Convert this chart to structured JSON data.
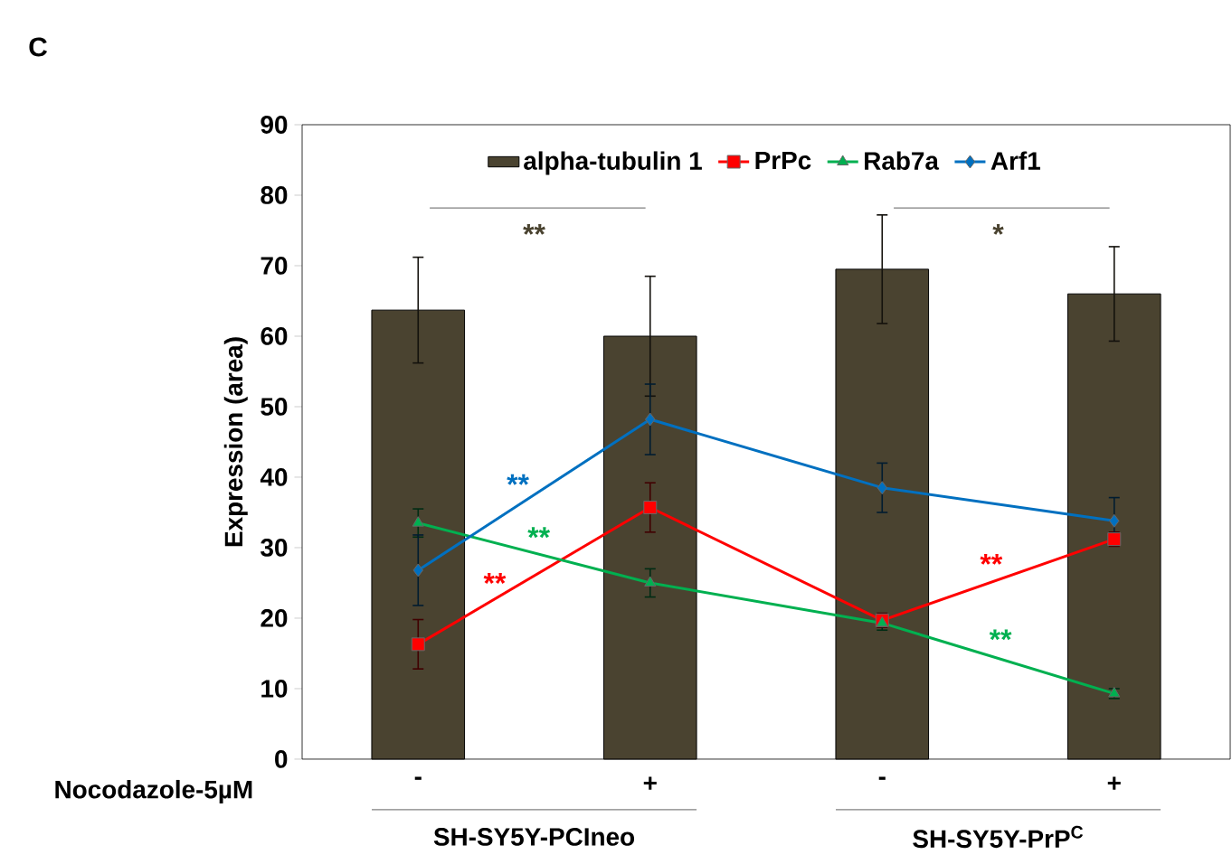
{
  "chart_data": {
    "type": "bar",
    "title": "C",
    "xlabel": "Nocodazole-5µM",
    "ylabel": "Expression (area)",
    "categories": [
      "-",
      "+",
      "-",
      "+"
    ],
    "series": [
      {
        "name": "alpha-tubulin 1",
        "color": "#4a4330",
        "values": [
          63.7,
          60.0,
          69.5,
          66.0
        ],
        "errors": [
          7.5,
          8.5,
          7.7,
          6.7
        ]
      },
      {
        "name": "PrPc",
        "type": "line",
        "color": "#ff0000",
        "marker": "square",
        "values": [
          16.3,
          35.7,
          19.7,
          31.2
        ],
        "errors": [
          3.5,
          3.5,
          1.0,
          1.0
        ]
      },
      {
        "name": "Rab7a",
        "type": "line",
        "color": "#00b050",
        "marker": "triangle",
        "values": [
          33.5,
          25.0,
          19.3,
          9.3
        ],
        "errors": [
          2.0,
          2.0,
          1.0,
          0.7
        ]
      },
      {
        "name": "Arf1",
        "type": "line",
        "color": "#0070c0",
        "marker": "diamond",
        "values": [
          26.8,
          48.2,
          38.5,
          33.8
        ],
        "errors": [
          5.0,
          5.0,
          3.5,
          3.3
        ]
      }
    ],
    "ylim": [
      0,
      90
    ],
    "yticks": [
      0,
      10,
      20,
      30,
      40,
      50,
      60,
      70,
      80,
      90
    ],
    "legend": "top",
    "grid": false,
    "annotations": [
      "**",
      "*",
      "**",
      "**",
      "**",
      "**",
      "**",
      "SH-SY5Y-PCIneo",
      "SH-SY5Y-PrP$^{C}$"
    ]
  }
}
